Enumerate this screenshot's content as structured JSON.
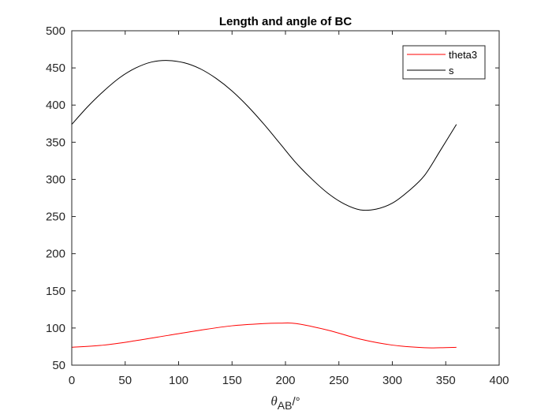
{
  "chart_data": {
    "type": "line",
    "title": "Length and angle of BC",
    "xlabel": {
      "symbol": "θ",
      "subscript": "AB",
      "unit": "/°"
    },
    "ylabel": "",
    "xlim": [
      0,
      400
    ],
    "ylim": [
      50,
      500
    ],
    "xticks": [
      0,
      50,
      100,
      150,
      200,
      250,
      300,
      350,
      400
    ],
    "yticks": [
      50,
      100,
      150,
      200,
      250,
      300,
      350,
      400,
      450,
      500
    ],
    "grid": false,
    "legend_position": "top-right",
    "series": [
      {
        "name": "theta3",
        "color": "#ff0000",
        "x": [
          0,
          30,
          60,
          90,
          120,
          150,
          180,
          195,
          210,
          240,
          270,
          300,
          330,
          345,
          360
        ],
        "y": [
          74,
          77,
          83,
          90,
          97,
          103,
          106,
          106.5,
          106,
          97,
          85,
          77,
          73.5,
          73.5,
          74
        ]
      },
      {
        "name": "s",
        "color": "#000000",
        "x": [
          0,
          15,
          30,
          45,
          60,
          75,
          90,
          105,
          120,
          135,
          150,
          165,
          180,
          195,
          210,
          225,
          240,
          255,
          270,
          285,
          300,
          315,
          330,
          345,
          360
        ],
        "y": [
          374,
          398,
          419,
          437,
          450,
          458,
          460,
          457,
          449,
          436,
          419,
          398,
          374,
          348,
          322,
          300,
          281,
          267,
          259,
          260,
          268,
          284,
          305,
          339,
          374
        ]
      }
    ]
  }
}
